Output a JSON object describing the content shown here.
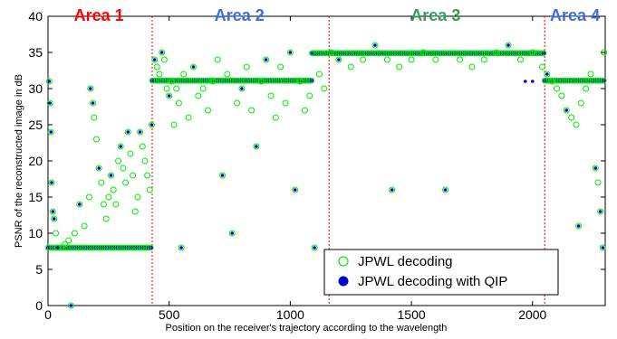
{
  "chart_data": {
    "type": "scatter",
    "title": "",
    "xlabel": "Position on the receiver's trajectory according to the wavelength",
    "ylabel": "PSNR of the reconstructed image in dB",
    "xlim": [
      0,
      2300
    ],
    "ylim": [
      0,
      40
    ],
    "xticks": [
      0,
      500,
      1000,
      1500,
      2000
    ],
    "yticks": [
      0,
      5,
      10,
      15,
      20,
      25,
      30,
      35,
      40
    ],
    "grid": false,
    "legend_position": "bottom-right",
    "areas": [
      {
        "label": "Area 1",
        "x_center": 210,
        "color": "#ff0000"
      },
      {
        "label": "Area 2",
        "x_center": 790,
        "color": "#4169e1"
      },
      {
        "label": "Area 3",
        "x_center": 1600,
        "color": "#3a9a5a"
      },
      {
        "label": "Area 4",
        "x_center": 2175,
        "color": "#4169e1"
      }
    ],
    "boundaries": [
      430,
      1160,
      2050
    ],
    "boundary_color": "#ff0000",
    "series": [
      {
        "name": "JPWL decoding",
        "marker": "circle-open",
        "color": "#00ee00",
        "points": [
          [
            5,
            31
          ],
          [
            8,
            28
          ],
          [
            12,
            24
          ],
          [
            15,
            17
          ],
          [
            20,
            13
          ],
          [
            25,
            12
          ],
          [
            32,
            10
          ],
          [
            40,
            8
          ],
          [
            55,
            8
          ],
          [
            70,
            8.5
          ],
          [
            85,
            9
          ],
          [
            95,
            0
          ],
          [
            110,
            10
          ],
          [
            130,
            14
          ],
          [
            150,
            11
          ],
          [
            170,
            15
          ],
          [
            175,
            30
          ],
          [
            185,
            28
          ],
          [
            190,
            26
          ],
          [
            200,
            23
          ],
          [
            210,
            19
          ],
          [
            220,
            17
          ],
          [
            230,
            14
          ],
          [
            240,
            12
          ],
          [
            250,
            15
          ],
          [
            260,
            18
          ],
          [
            270,
            16
          ],
          [
            280,
            14
          ],
          [
            290,
            20
          ],
          [
            300,
            22
          ],
          [
            310,
            19
          ],
          [
            320,
            17
          ],
          [
            330,
            24
          ],
          [
            340,
            21
          ],
          [
            350,
            18
          ],
          [
            360,
            13
          ],
          [
            370,
            15
          ],
          [
            380,
            24
          ],
          [
            390,
            22
          ],
          [
            400,
            20
          ],
          [
            410,
            18
          ],
          [
            420,
            16
          ],
          [
            428,
            25
          ],
          [
            440,
            34
          ],
          [
            450,
            33
          ],
          [
            460,
            32
          ],
          [
            470,
            35
          ],
          [
            480,
            34
          ],
          [
            490,
            30
          ],
          [
            500,
            29
          ],
          [
            510,
            31
          ],
          [
            520,
            25
          ],
          [
            530,
            30
          ],
          [
            540,
            28
          ],
          [
            550,
            8
          ],
          [
            560,
            32
          ],
          [
            580,
            26
          ],
          [
            600,
            33
          ],
          [
            620,
            29
          ],
          [
            640,
            30
          ],
          [
            660,
            27
          ],
          [
            680,
            31
          ],
          [
            700,
            34
          ],
          [
            720,
            18
          ],
          [
            740,
            32
          ],
          [
            760,
            10
          ],
          [
            780,
            28
          ],
          [
            800,
            30
          ],
          [
            820,
            33
          ],
          [
            840,
            27
          ],
          [
            860,
            22
          ],
          [
            880,
            31
          ],
          [
            900,
            34
          ],
          [
            920,
            29
          ],
          [
            940,
            26
          ],
          [
            960,
            33
          ],
          [
            980,
            28
          ],
          [
            1000,
            35
          ],
          [
            1020,
            16
          ],
          [
            1040,
            31
          ],
          [
            1060,
            27
          ],
          [
            1080,
            29
          ],
          [
            1100,
            8
          ],
          [
            1120,
            32
          ],
          [
            1140,
            30
          ],
          [
            1170,
            35
          ],
          [
            1200,
            34
          ],
          [
            1250,
            33
          ],
          [
            1300,
            34
          ],
          [
            1350,
            36
          ],
          [
            1400,
            34
          ],
          [
            1420,
            16
          ],
          [
            1450,
            33
          ],
          [
            1500,
            34
          ],
          [
            1550,
            35
          ],
          [
            1600,
            34
          ],
          [
            1640,
            16
          ],
          [
            1700,
            34
          ],
          [
            1750,
            33
          ],
          [
            1800,
            34
          ],
          [
            1850,
            35
          ],
          [
            1900,
            36
          ],
          [
            1950,
            34
          ],
          [
            2000,
            35
          ],
          [
            2040,
            33
          ],
          [
            2060,
            32
          ],
          [
            2080,
            31
          ],
          [
            2100,
            30
          ],
          [
            2120,
            29
          ],
          [
            2140,
            27
          ],
          [
            2160,
            26
          ],
          [
            2180,
            25
          ],
          [
            2190,
            11
          ],
          [
            2200,
            28
          ],
          [
            2220,
            30
          ],
          [
            2240,
            32
          ],
          [
            2260,
            19
          ],
          [
            2270,
            17
          ],
          [
            2280,
            13
          ],
          [
            2290,
            8
          ],
          [
            2295,
            35
          ]
        ]
      },
      {
        "name": "JPWL decoding with QIP",
        "marker": "circle-filled",
        "color": "#0000cc",
        "points": [
          [
            5,
            31
          ],
          [
            8,
            28
          ],
          [
            12,
            24
          ],
          [
            15,
            17
          ],
          [
            20,
            13
          ],
          [
            25,
            12
          ],
          [
            40,
            8
          ],
          [
            95,
            0
          ],
          [
            130,
            14
          ],
          [
            175,
            30
          ],
          [
            185,
            28
          ],
          [
            210,
            19
          ],
          [
            260,
            18
          ],
          [
            300,
            22
          ],
          [
            330,
            24
          ],
          [
            380,
            24
          ],
          [
            428,
            25
          ],
          [
            440,
            34
          ],
          [
            470,
            35
          ],
          [
            500,
            29
          ],
          [
            550,
            8
          ],
          [
            600,
            33
          ],
          [
            720,
            18
          ],
          [
            760,
            10
          ],
          [
            800,
            30
          ],
          [
            860,
            22
          ],
          [
            900,
            34
          ],
          [
            1000,
            35
          ],
          [
            1020,
            16
          ],
          [
            1100,
            8
          ],
          [
            1200,
            34
          ],
          [
            1350,
            36
          ],
          [
            1420,
            16
          ],
          [
            1640,
            16
          ],
          [
            1900,
            36
          ],
          [
            1970,
            31
          ],
          [
            2000,
            31
          ],
          [
            2060,
            32
          ],
          [
            2140,
            27
          ],
          [
            2190,
            11
          ],
          [
            2260,
            19
          ],
          [
            2280,
            13
          ],
          [
            2290,
            8
          ]
        ],
        "bands": [
          {
            "x_start": 0,
            "x_end": 430,
            "y": 8
          },
          {
            "x_start": 430,
            "x_end": 1090,
            "y": 31.1
          },
          {
            "x_start": 1090,
            "x_end": 2050,
            "y": 34.9
          },
          {
            "x_start": 2050,
            "x_end": 2300,
            "y": 31.1
          }
        ]
      }
    ]
  }
}
